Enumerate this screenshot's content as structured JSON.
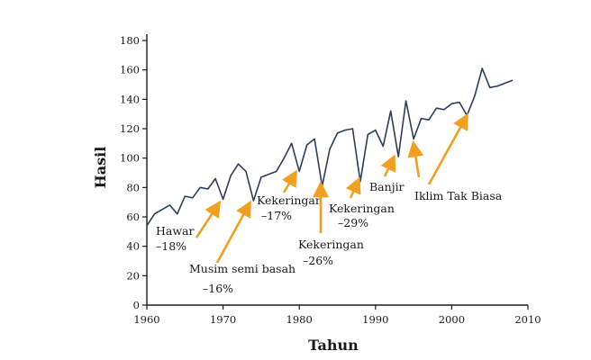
{
  "chart_data": {
    "type": "line",
    "xlabel": "Tahun",
    "ylabel": "Hasil",
    "xlim": [
      1960,
      2010
    ],
    "ylim": [
      0,
      180
    ],
    "x_ticks": [
      1960,
      1970,
      1980,
      1990,
      2000,
      2010
    ],
    "y_ticks": [
      0,
      20,
      40,
      60,
      80,
      100,
      120,
      140,
      160,
      180
    ],
    "grid": false,
    "series": [
      {
        "name": "Hasil",
        "color": "#2e3c5c",
        "x": [
          1960,
          1961,
          1962,
          1963,
          1964,
          1965,
          1966,
          1967,
          1968,
          1969,
          1970,
          1971,
          1972,
          1973,
          1974,
          1975,
          1976,
          1977,
          1978,
          1979,
          1980,
          1981,
          1982,
          1983,
          1984,
          1985,
          1986,
          1987,
          1988,
          1989,
          1990,
          1991,
          1992,
          1993,
          1994,
          1995,
          1996,
          1997,
          1998,
          1999,
          2000,
          2001,
          2002,
          2003,
          2004,
          2005,
          2006,
          2007,
          2008
        ],
        "values": [
          54,
          62,
          65,
          68,
          62,
          74,
          73,
          80,
          79,
          86,
          72,
          88,
          96,
          91,
          71,
          87,
          89,
          91,
          100,
          110,
          91,
          109,
          113,
          81,
          106,
          117,
          119,
          120,
          84,
          116,
          119,
          108,
          132,
          101,
          139,
          113,
          127,
          126,
          134,
          133,
          137,
          138,
          129,
          142,
          161,
          148,
          149,
          151,
          153
        ]
      }
    ],
    "annotations": [
      {
        "id": "hawar",
        "lines": [
          "Hawar",
          "–18%"
        ],
        "target_year": 1970,
        "arrow_color": "#f0a020"
      },
      {
        "id": "musim-semi-basah",
        "lines": [
          "Musim semi basah",
          "–16%"
        ],
        "target_year": 1974,
        "arrow_color": "#f0a020"
      },
      {
        "id": "kekeringan-1980",
        "lines": [
          "Kekeringan",
          "–17%"
        ],
        "target_year": 1980,
        "arrow_color": "#f0a020"
      },
      {
        "id": "kekeringan-1983",
        "lines": [
          "Kekeringan",
          "–26%"
        ],
        "target_year": 1983,
        "arrow_color": "#f0a020"
      },
      {
        "id": "kekeringan-1988",
        "lines": [
          "Kekeringan",
          "–29%"
        ],
        "target_year": 1988,
        "arrow_color": "#f0a020"
      },
      {
        "id": "banjir",
        "lines": [
          "Banjir"
        ],
        "target_year": 1993,
        "arrow_color": "#f0a020"
      },
      {
        "id": "iklim-tak-biasa",
        "lines": [
          "Iklim Tak Biasa"
        ],
        "target_year": 2002,
        "arrow_color": "#f0a020"
      }
    ]
  }
}
